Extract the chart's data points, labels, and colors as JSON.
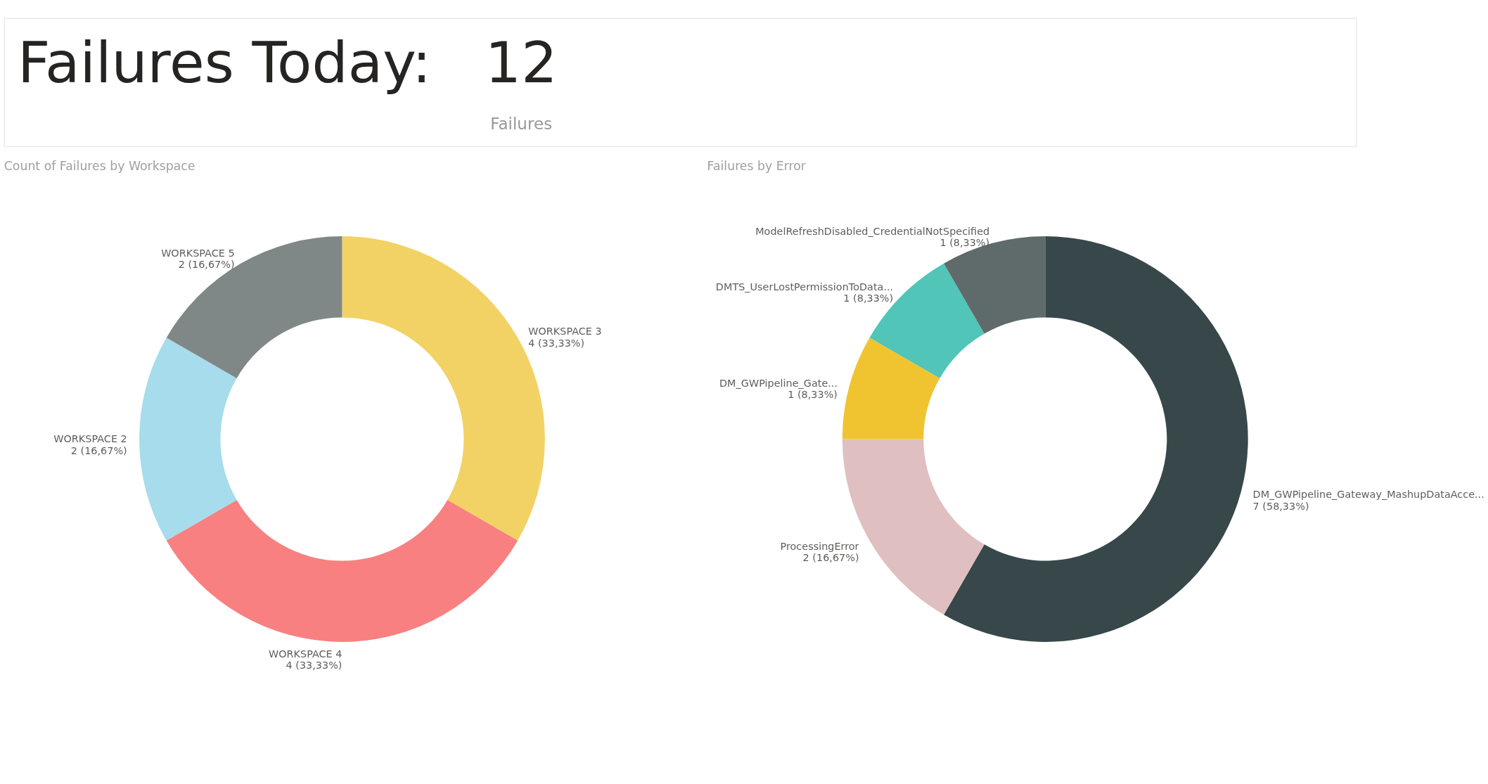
{
  "chart_data": [
    {
      "type": "other",
      "title": "Failures Today:",
      "annotations": [
        "12",
        "Failures"
      ]
    },
    {
      "type": "donut",
      "title": "Count of Failures by Workspace",
      "categories": [
        "WORKSPACE 3",
        "WORKSPACE 4",
        "WORKSPACE 2",
        "WORKSPACE 5"
      ],
      "values": [
        4,
        4,
        2,
        2
      ],
      "colors": [
        "#f2d264",
        "#f98080",
        "#a6dcec",
        "#7f8886"
      ],
      "value_labels": [
        "4 (33,33%)",
        "4 (33,33%)",
        "2 (16,67%)",
        "2 (16,67%)"
      ]
    },
    {
      "type": "donut",
      "title": "Failures by Error",
      "categories": [
        "DM_GWPipeline_Gateway_MashupDataAcce...",
        "ProcessingError",
        "DM_GWPipeline_Gate...",
        "DMTS_UserLostPermissionToData...",
        "ModelRefreshDisabled_CredentialNotSpecified"
      ],
      "values": [
        7,
        2,
        1,
        1,
        1
      ],
      "colors": [
        "#37474a",
        "#dfbfbf",
        "#f0c430",
        "#50c5b8",
        "#5f6b6b"
      ],
      "value_labels": [
        "7 (58,33%)",
        "2 (16,67%)",
        "1 (8,33%)",
        "1 (8,33%)",
        "1 (8,33%)"
      ]
    }
  ]
}
